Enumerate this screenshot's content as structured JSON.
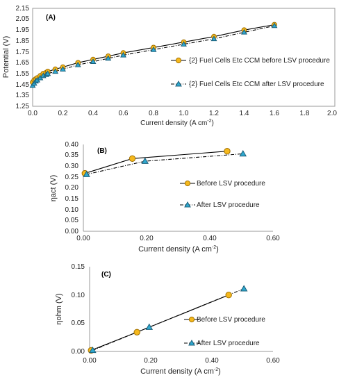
{
  "chart_data": [
    {
      "id": "A",
      "type": "line",
      "panel_label": "(A)",
      "xlabel": "Current density (A cm",
      "xlabel_sup": "-2",
      "xlabel_end": ")",
      "ylabel": "Potential (V)",
      "xlim": [
        0.0,
        2.0
      ],
      "ylim": [
        1.25,
        2.15
      ],
      "xticks": [
        0.0,
        0.2,
        0.4,
        0.6,
        0.8,
        1.0,
        1.2,
        1.4,
        1.6,
        1.8,
        2.0
      ],
      "xtick_labels": [
        "0.0",
        "0.2",
        "0.4",
        "0.6",
        "0.8",
        "1.0",
        "1.2",
        "1.4",
        "1.6",
        "1.8",
        "2.0"
      ],
      "yticks": [
        1.25,
        1.35,
        1.45,
        1.55,
        1.65,
        1.75,
        1.85,
        1.95,
        2.05,
        2.15
      ],
      "ytick_labels": [
        "1.25",
        "1.35",
        "1.45",
        "1.55",
        "1.65",
        "1.75",
        "1.85",
        "1.95",
        "2.05",
        "2.15"
      ],
      "legend_position": "right",
      "series": [
        {
          "name": "{2} Fuel Cells Etc CCM before LSV procedure",
          "marker": "circle",
          "line": "solid",
          "color": "#f5b81c",
          "stroke": "#a07000",
          "x": [
            0.0,
            0.01,
            0.02,
            0.03,
            0.05,
            0.07,
            0.09,
            0.1,
            0.15,
            0.2,
            0.3,
            0.4,
            0.5,
            0.6,
            0.8,
            1.0,
            1.2,
            1.4,
            1.6
          ],
          "y": [
            1.47,
            1.49,
            1.5,
            1.51,
            1.53,
            1.55,
            1.56,
            1.57,
            1.59,
            1.61,
            1.65,
            1.68,
            1.71,
            1.74,
            1.79,
            1.84,
            1.89,
            1.95,
            2.0
          ]
        },
        {
          "name": "{2} Fuel Cells Etc CCM after LSV procedure",
          "marker": "triangle",
          "line": "dashdot",
          "color": "#2fa8cf",
          "stroke": "#1a5f7a",
          "x": [
            0.0,
            0.01,
            0.02,
            0.03,
            0.05,
            0.07,
            0.09,
            0.1,
            0.15,
            0.2,
            0.3,
            0.4,
            0.5,
            0.6,
            0.8,
            1.0,
            1.2,
            1.4,
            1.6
          ],
          "y": [
            1.44,
            1.46,
            1.48,
            1.49,
            1.51,
            1.53,
            1.54,
            1.55,
            1.57,
            1.59,
            1.63,
            1.66,
            1.69,
            1.72,
            1.77,
            1.82,
            1.87,
            1.93,
            1.99
          ]
        }
      ]
    },
    {
      "id": "B",
      "type": "line",
      "panel_label": "(B)",
      "xlabel": "Current density (A cm",
      "xlabel_sup": "-2",
      "xlabel_end": ")",
      "ylabel": "ηact (V)",
      "xlim": [
        0.0,
        0.6
      ],
      "ylim": [
        0.0,
        0.4
      ],
      "xticks": [
        0.0,
        0.2,
        0.4,
        0.6
      ],
      "xtick_labels": [
        "0.00",
        "0.20",
        "0.40",
        "0.60"
      ],
      "yticks": [
        0.0,
        0.05,
        0.1,
        0.15,
        0.2,
        0.25,
        0.3,
        0.35,
        0.4
      ],
      "ytick_labels": [
        "0.00",
        "0.05",
        "0.10",
        "0.15",
        "0.20",
        "0.25",
        "0.30",
        "0.35",
        "0.40"
      ],
      "legend_position": "right",
      "series": [
        {
          "name": "Before LSV procedure",
          "marker": "circle",
          "line": "solid",
          "color": "#f5b81c",
          "stroke": "#a07000",
          "x": [
            0.005,
            0.155,
            0.455
          ],
          "y": [
            0.267,
            0.335,
            0.369
          ]
        },
        {
          "name": "After LSV procedure",
          "marker": "triangle",
          "line": "dashdot",
          "color": "#2fa8cf",
          "stroke": "#1a5f7a",
          "x": [
            0.01,
            0.195,
            0.505
          ],
          "y": [
            0.262,
            0.323,
            0.357
          ]
        }
      ]
    },
    {
      "id": "C",
      "type": "line",
      "panel_label": "(C)",
      "xlabel": "Current density (A cm",
      "xlabel_sup": "-2",
      "xlabel_end": ")",
      "ylabel": "ηohm (V)",
      "xlim": [
        0.0,
        0.6
      ],
      "ylim": [
        0.0,
        0.15
      ],
      "xticks": [
        0.0,
        0.2,
        0.4,
        0.6
      ],
      "xtick_labels": [
        "0.00",
        "0.20",
        "0.40",
        "0.60"
      ],
      "yticks": [
        0.0,
        0.05,
        0.1,
        0.15
      ],
      "ytick_labels": [
        "0.00",
        "0.05",
        "0.10",
        "0.15"
      ],
      "legend_position": "right",
      "series": [
        {
          "name": "Before LSV procedure",
          "marker": "circle",
          "line": "solid",
          "color": "#f5b81c",
          "stroke": "#a07000",
          "x": [
            0.005,
            0.155,
            0.455
          ],
          "y": [
            0.002,
            0.034,
            0.1
          ]
        },
        {
          "name": "After LSV procedure",
          "marker": "triangle",
          "line": "dashdot",
          "color": "#2fa8cf",
          "stroke": "#1a5f7a",
          "x": [
            0.01,
            0.195,
            0.505
          ],
          "y": [
            0.002,
            0.043,
            0.111
          ]
        }
      ]
    }
  ]
}
